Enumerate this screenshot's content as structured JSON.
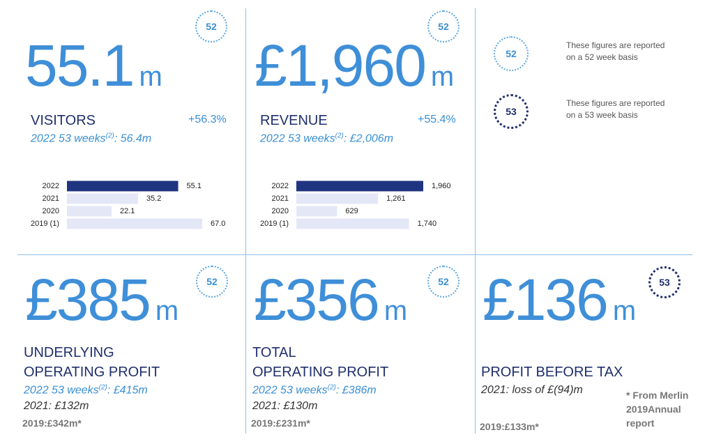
{
  "kpis": [
    {
      "badge": "52",
      "value": "55.1",
      "unit": "m",
      "label": [
        "VISITORS"
      ],
      "change": "+56.3%",
      "note": {
        "text": "2022 53 weeks",
        "sup": "(2)",
        "rest": ": 56.4m"
      },
      "chart": {
        "type": "bar",
        "categories": [
          "2022",
          "2021",
          "2020",
          "2019 (1)"
        ],
        "values": [
          55.1,
          35.2,
          22.1,
          67.0
        ],
        "value_labels": [
          "55.1",
          "35.2",
          "22.1",
          "67.0"
        ],
        "colors": [
          "#1f3580",
          "#e4e7f6",
          "#e4e7f6",
          "#e4e7f6"
        ]
      }
    },
    {
      "badge": "52",
      "value": "£1,960",
      "unit": "m",
      "label": [
        "REVENUE"
      ],
      "change": "+55.4%",
      "note": {
        "text": "2022 53 weeks",
        "sup": "(2)",
        "rest": ": £2,006m"
      },
      "chart": {
        "type": "bar",
        "categories": [
          "2022",
          "2021",
          "2020",
          "2019 (1)"
        ],
        "values": [
          1960,
          1261,
          629,
          1740
        ],
        "value_labels": [
          "1,960",
          "1,261",
          "629",
          "1,740"
        ],
        "colors": [
          "#1f3580",
          "#e4e7f6",
          "#e4e7f6",
          "#e4e7f6"
        ]
      }
    },
    {
      "badge": "52",
      "value": "£385",
      "unit": "m",
      "label": [
        "UNDERLYING",
        "OPERATING PROFIT"
      ],
      "note": {
        "text": "2022 53 weeks",
        "sup": "(2)",
        "rest": ": £415m"
      },
      "prior": "2021: £132m",
      "extra": "2019:£342m*"
    },
    {
      "badge": "52",
      "value": "£356",
      "unit": "m",
      "label": [
        "TOTAL",
        "OPERATING PROFIT"
      ],
      "note": {
        "text": "2022 53 weeks",
        "sup": "(2)",
        "rest": ": £386m"
      },
      "prior": "2021: £130m",
      "extra": "2019:£231m*"
    },
    {
      "badge": "53",
      "value": "£136",
      "unit": "m",
      "label": [
        "PROFIT BEFORE TAX"
      ],
      "prior": "2021: loss of £(94)m",
      "extra": "2019:£133m*"
    }
  ],
  "legend": [
    {
      "badge": "52",
      "text": [
        "These figures are reported",
        "on a 52 week basis"
      ]
    },
    {
      "badge": "53",
      "text": [
        "These figures are reported",
        "on a 53 week basis"
      ]
    }
  ],
  "footnote": [
    "* From Merlin",
    "2019Annual",
    "report"
  ]
}
